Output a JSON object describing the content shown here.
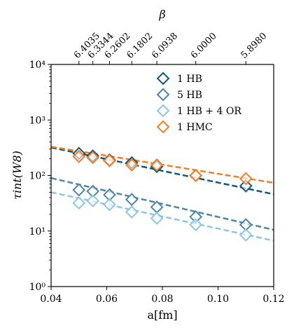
{
  "chart_data": {
    "type": "scatter",
    "title": "",
    "xlabel": "a[fm]",
    "ylabel": "τint(W8)",
    "top_axis_label": "β",
    "xlim": [
      0.04,
      0.12
    ],
    "ylim": [
      1,
      10000
    ],
    "yscale": "log",
    "x_ticks": [
      0.04,
      0.06,
      0.08,
      0.1,
      0.12
    ],
    "x_tick_labels": [
      "0.04",
      "0.06",
      "0.08",
      "0.10",
      "0.12"
    ],
    "y_ticks": [
      1,
      10,
      100,
      1000,
      10000
    ],
    "y_tick_labels": [
      "10⁰",
      "10¹",
      "10²",
      "10³",
      "10⁴"
    ],
    "top_ticks": [
      {
        "a": 0.05,
        "label": "6.4035"
      },
      {
        "a": 0.055,
        "label": "6.3344"
      },
      {
        "a": 0.061,
        "label": "6.2602"
      },
      {
        "a": 0.069,
        "label": "6.1802"
      },
      {
        "a": 0.078,
        "label": "6.0938"
      },
      {
        "a": 0.092,
        "label": "6.0000"
      },
      {
        "a": 0.11,
        "label": "5.8980"
      }
    ],
    "grid": false,
    "legend_position": "top-right",
    "x": [
      0.05,
      0.055,
      0.061,
      0.069,
      0.078,
      0.092,
      0.11
    ],
    "series": [
      {
        "name": "1 HB",
        "color": "#12577c",
        "marker": "diamond",
        "values": [
          250,
          225,
          190,
          170,
          145,
          100,
          65
        ],
        "fit": [
          [
            0.04,
            320
          ],
          [
            0.12,
            46
          ]
        ]
      },
      {
        "name": "5 HB",
        "color": "#4d87a8",
        "marker": "diamond",
        "values": [
          55,
          52,
          45,
          37,
          27,
          18,
          13
        ],
        "fit": [
          [
            0.04,
            90
          ],
          [
            0.12,
            10.5
          ]
        ]
      },
      {
        "name": "1 HB + 4 OR",
        "color": "#8cc8e3",
        "marker": "diamond",
        "values": [
          32,
          35,
          30,
          22,
          17,
          13,
          8.5
        ],
        "fit": [
          [
            0.04,
            50
          ],
          [
            0.12,
            6.7
          ]
        ]
      },
      {
        "name": "1 HMC",
        "color": "#f07f2c",
        "marker": "diamond",
        "values": [
          220,
          210,
          185,
          155,
          155,
          100,
          88
        ],
        "fit": [
          [
            0.04,
            330
          ],
          [
            0.12,
            74
          ]
        ]
      }
    ]
  }
}
